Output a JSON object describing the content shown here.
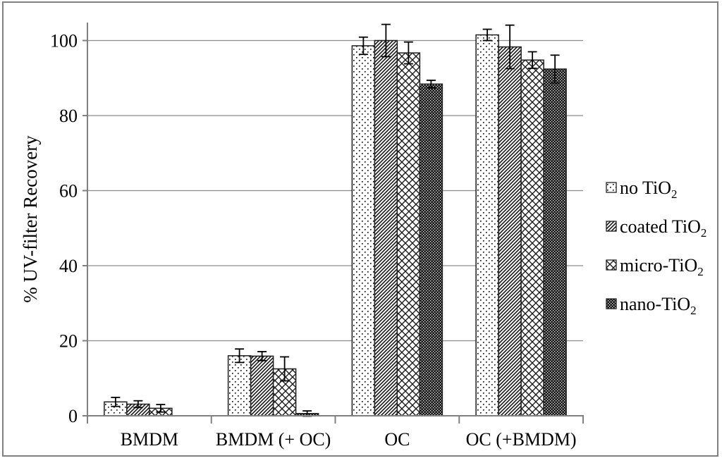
{
  "figure": {
    "background": "#ffffff",
    "frame_color": "#808080"
  },
  "chart_data": {
    "type": "bar",
    "title": "",
    "xlabel": "",
    "ylabel": "% UV-filter Recovery",
    "categories": [
      "BMDM",
      "BMDM (+ OC)",
      "OC",
      "OC (+BMDM)"
    ],
    "series": [
      {
        "name": "no TiO2",
        "legend_base": "no TiO",
        "legend_sub": "2",
        "pattern": "dots",
        "values": [
          3.7,
          16.0,
          98.6,
          101.5
        ],
        "errors": [
          1.2,
          1.8,
          2.3,
          1.5
        ]
      },
      {
        "name": "coated TiO2",
        "legend_base": "coated TiO",
        "legend_sub": "2",
        "pattern": "diagonal",
        "values": [
          3.1,
          15.9,
          100.0,
          98.3
        ],
        "errors": [
          0.9,
          1.2,
          4.3,
          5.8
        ]
      },
      {
        "name": "micro-TiO2",
        "legend_base": "micro-TiO",
        "legend_sub": "2",
        "pattern": "diamond",
        "values": [
          2.0,
          12.5,
          96.7,
          94.8
        ],
        "errors": [
          1.0,
          3.2,
          2.9,
          2.2
        ]
      },
      {
        "name": "nano-TiO2",
        "legend_base": "nano-TiO",
        "legend_sub": "2",
        "pattern": "dense",
        "values": [
          0.0,
          0.6,
          88.4,
          92.4
        ],
        "errors": [
          0.0,
          0.7,
          1.0,
          3.7
        ]
      }
    ],
    "y_ticks": [
      0,
      20,
      40,
      60,
      80,
      100
    ],
    "ylim": [
      0,
      104
    ],
    "grid": true,
    "legend_position": "right",
    "colors": {
      "grid": "#8c8c8c",
      "axis": "#808080",
      "pattern_ink": "#1a1a1a",
      "bar_stroke": "#1f1f1f",
      "error_bar": "#000000",
      "text": "#000000"
    }
  }
}
